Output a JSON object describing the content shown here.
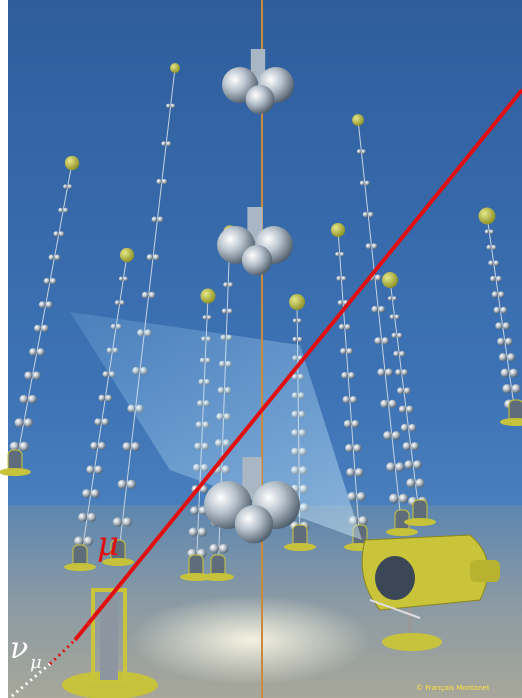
{
  "labels": {
    "muon": "μ",
    "neutrino": "ν",
    "neutrino_subscript": "μ",
    "credit": "© François Montanet"
  }
}
